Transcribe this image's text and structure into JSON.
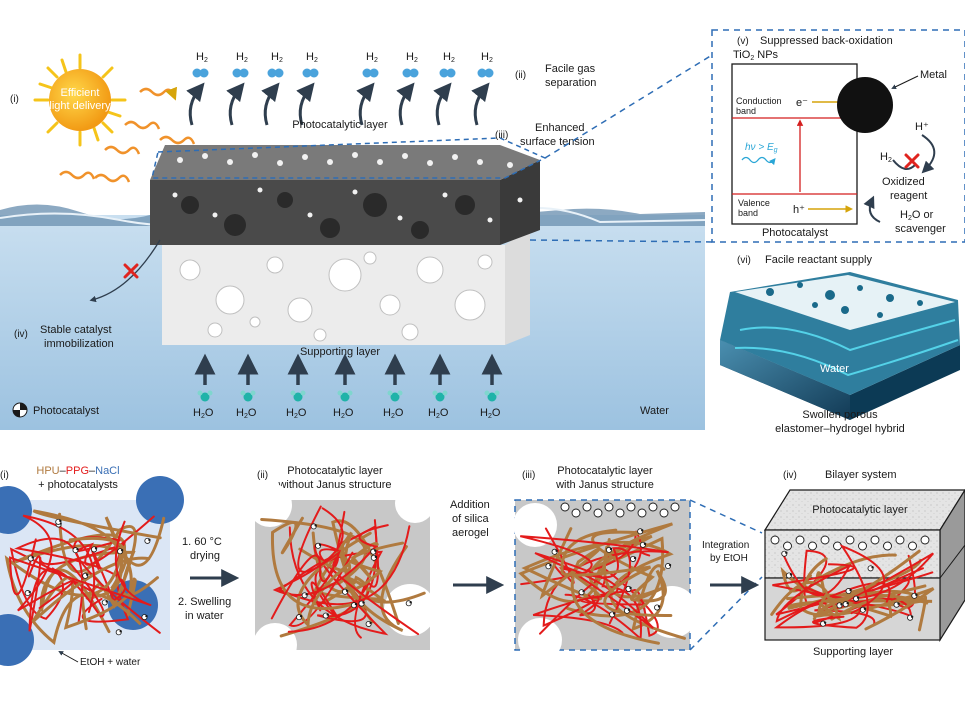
{
  "top": {
    "sun_label_1": "Efficient",
    "sun_label_2": "light delivery",
    "num_i": "(i)",
    "num_ii": "(ii)",
    "gas_1": "Facile gas",
    "gas_2": "separation",
    "photocatalytic_layer": "Photocatalytic layer",
    "num_iii": "(iii)",
    "tension_1": "Enhanced",
    "tension_2": "surface tension",
    "num_iv": "(iv)",
    "immob_1": "Stable catalyst",
    "immob_2": "immobilization",
    "supporting_layer": "Supporting layer",
    "photocatalyst_legend": "Photocatalyst",
    "water": "Water",
    "h2": "H",
    "h2_sub": "2",
    "h2o_h": "H",
    "h2o_sub": "2",
    "h2o_o": "O"
  },
  "inset_v": {
    "num": "(v)",
    "title": "Suppressed back-oxidation",
    "tio2": "TiO",
    "tio2_sub": "2",
    "tio2_rest": " NPs",
    "metal": "Metal",
    "cb_1": "Conduction",
    "cb_2": "band",
    "vb_1": "Valence",
    "vb_2": "band",
    "electron": "e⁻",
    "hole": "h⁺",
    "hv": "hν > E",
    "hv_sub": "g",
    "hplus": "H⁺",
    "h2": "H",
    "h2_sub": "2",
    "oxidized_1": "Oxidized",
    "oxidized_2": "reagent",
    "water_1_h": "H",
    "water_1_sub": "2",
    "water_1_rest": "O or",
    "water_2": "scavenger",
    "photocatalyst": "Photocatalyst"
  },
  "inset_vi": {
    "num": "(vi)",
    "title": "Facile reactant supply",
    "water": "Water",
    "caption_1": "Swollen porous",
    "caption_2": "elastomer–hydrogel hybrid"
  },
  "bottom": {
    "num_i": "(i)",
    "hpu": "HPU",
    "ppg": "PPG",
    "nacl": "NaCl",
    "dash": "–",
    "plus_photocatalysts": "+ photocatalysts",
    "etoh_water": "EtOH + water",
    "step1_1": "1. 60 °C",
    "step1_2": "drying",
    "step2_1": "2. Swelling",
    "step2_2": "in water",
    "num_ii": "(ii)",
    "ii_title_1": "Photocatalytic layer",
    "ii_title_2": "without Janus structure",
    "add_1": "Addition",
    "add_2": "of silica",
    "add_3": "aerogel",
    "num_iii": "(iii)",
    "iii_title_1": "Photocatalytic layer",
    "iii_title_2": "with Janus structure",
    "integ_1": "Integration",
    "integ_2": "by EtOH",
    "num_iv": "(iv)",
    "iv_title": "Bilayer system",
    "block_top": "Photocatalytic layer",
    "supporting": "Supporting layer"
  },
  "colors": {
    "water": "#a9cbe3",
    "hpu": "#b07a3f",
    "ppg": "#e31b1b",
    "nacl": "#3a6fb5",
    "dashed_blue": "#2e6db5",
    "gel_gray": "#c8c8c8"
  }
}
